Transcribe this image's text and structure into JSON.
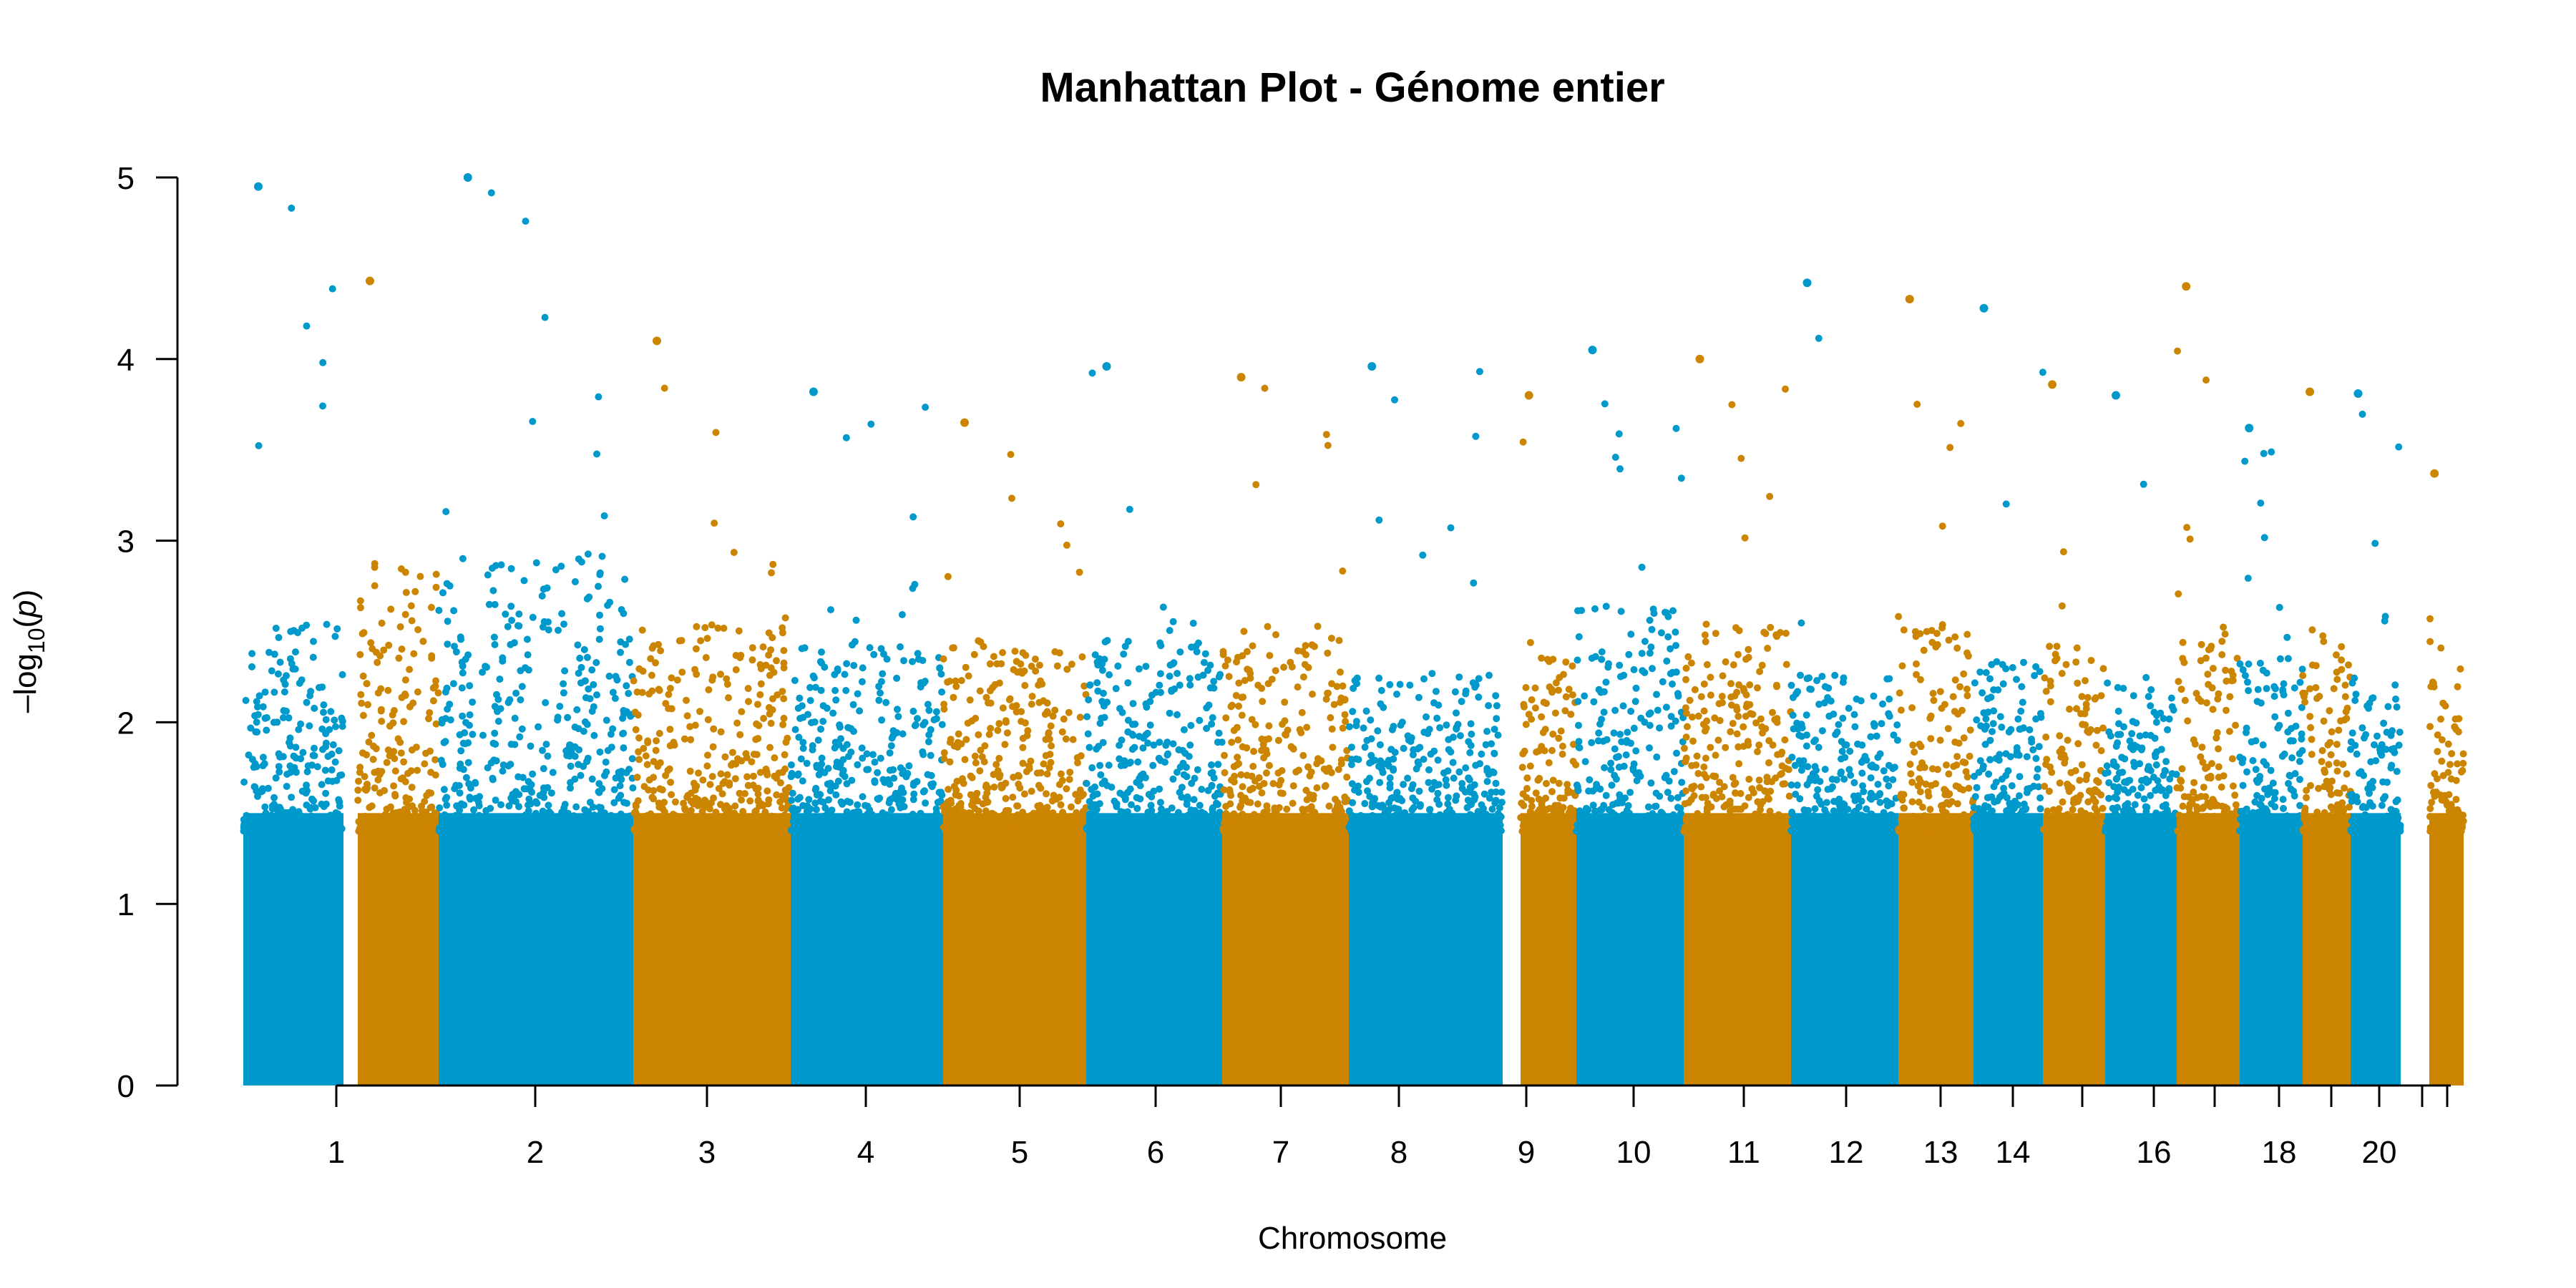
{
  "chart_data": {
    "type": "scatter",
    "title": "Manhattan Plot - Génome entier",
    "xlabel": "Chromosome",
    "ylabel": "-log10(p)",
    "ylabel_parts": {
      "prefix": "–log",
      "sub": "10",
      "open": "(",
      "var": "p",
      "close": ")"
    },
    "ylim": [
      0,
      5
    ],
    "yticks": [
      "0",
      "1",
      "2",
      "3",
      "4",
      "5"
    ],
    "grid": false,
    "legend": "none",
    "colors": [
      "#0099cc",
      "#cc8500"
    ],
    "chromosomes": [
      {
        "chr": 1,
        "label": "1",
        "peak": 4.95,
        "band": 2.6
      },
      {
        "chr": 2,
        "label": "2",
        "peak": 4.43,
        "band": 3.0
      },
      {
        "chr": 3,
        "label": "3",
        "peak": 5.0,
        "band": 3.0
      },
      {
        "chr": 4,
        "label": "4",
        "peak": 4.1,
        "band": 2.6
      },
      {
        "chr": 5,
        "label": "5",
        "peak": 3.82,
        "band": 2.5
      },
      {
        "chr": 6,
        "label": "6",
        "peak": 3.65,
        "band": 2.5
      },
      {
        "chr": 7,
        "label": "7",
        "peak": 3.96,
        "band": 2.5
      },
      {
        "chr": 8,
        "label": "8",
        "peak": 3.9,
        "band": 2.6
      },
      {
        "chr": 9,
        "label": "9",
        "peak": 3.96,
        "band": 2.3
      },
      {
        "chr": 10,
        "label": "10",
        "peak": 3.8,
        "band": 2.4
      },
      {
        "chr": 11,
        "label": "11",
        "peak": 4.05,
        "band": 2.7
      },
      {
        "chr": 12,
        "label": "12",
        "peak": 4.0,
        "band": 2.6
      },
      {
        "chr": 13,
        "label": "13",
        "peak": 4.42,
        "band": 2.3
      },
      {
        "chr": 14,
        "label": "14",
        "peak": 4.33,
        "band": 2.6
      },
      {
        "chr": 15,
        "label": "",
        "peak": 4.28,
        "band": 2.4
      },
      {
        "chr": 16,
        "label": "16",
        "peak": 3.86,
        "band": 2.5
      },
      {
        "chr": 17,
        "label": "",
        "peak": 3.8,
        "band": 2.3
      },
      {
        "chr": 18,
        "label": "18",
        "peak": 4.4,
        "band": 2.5
      },
      {
        "chr": 19,
        "label": "",
        "peak": 3.62,
        "band": 2.4
      },
      {
        "chr": 20,
        "label": "20",
        "peak": 3.82,
        "band": 2.6
      },
      {
        "chr": 21,
        "label": "",
        "peak": 3.81,
        "band": 2.3
      },
      {
        "chr": 22,
        "label": "",
        "peak": 3.37,
        "band": 2.4
      }
    ]
  }
}
